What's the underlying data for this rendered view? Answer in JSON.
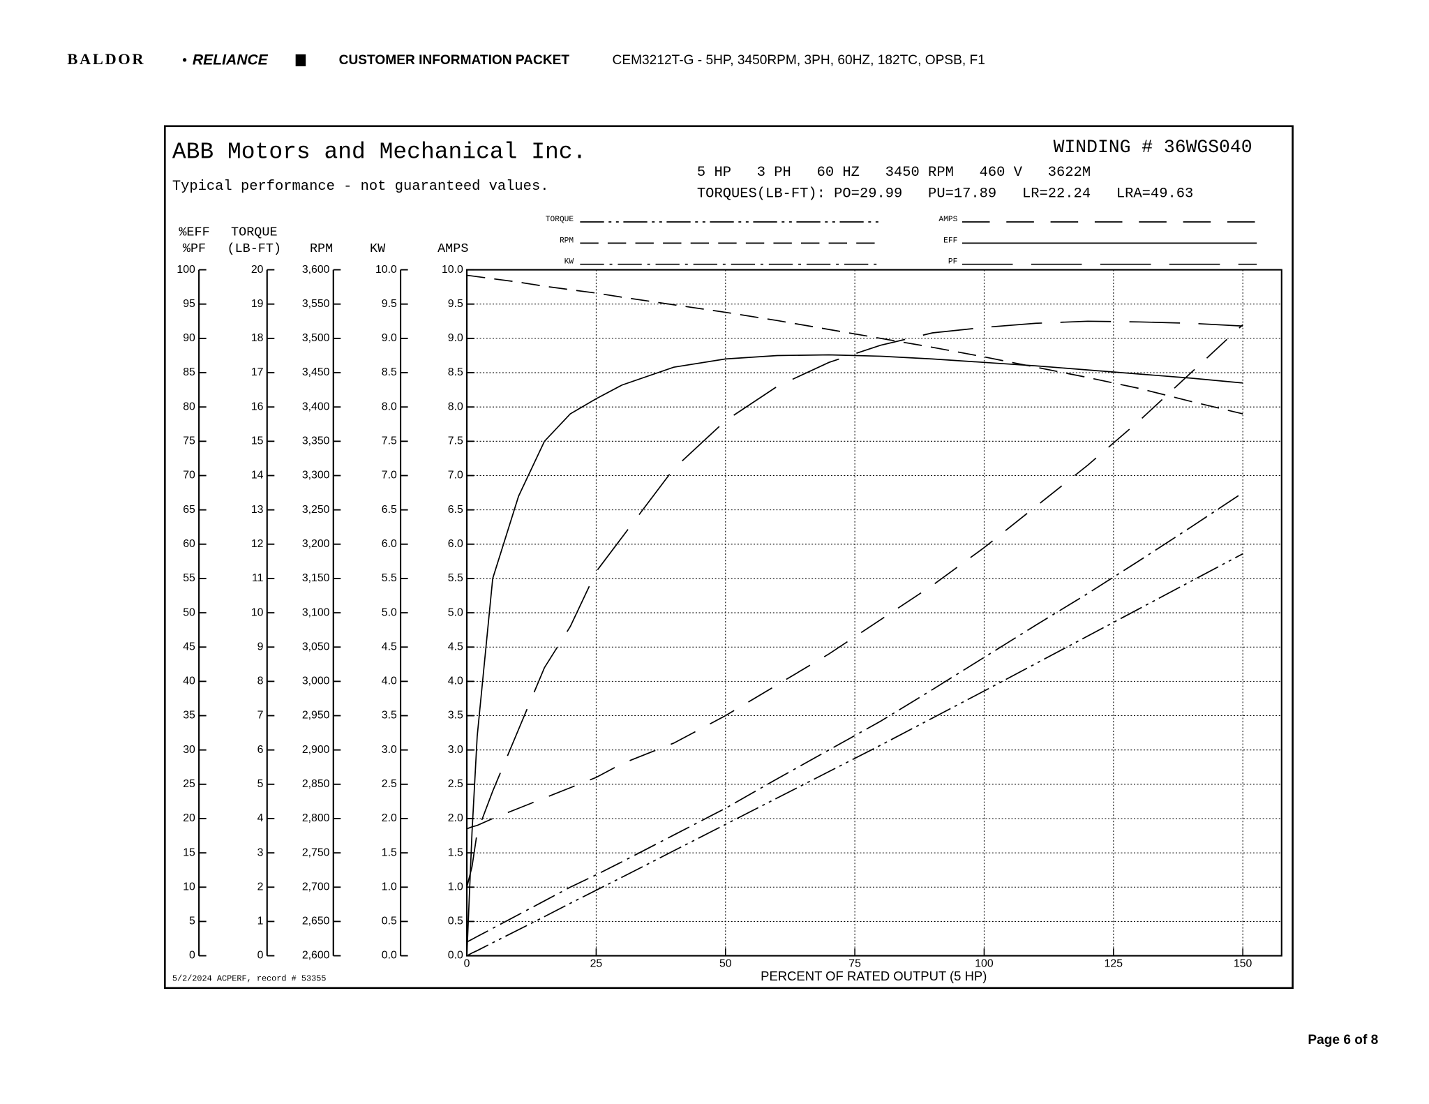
{
  "header": {
    "logo_left": "BALDOR",
    "separator": "•",
    "logo_right": "RELIANCE",
    "packet": "CUSTOMER INFORMATION PACKET",
    "model": "CEM3212T-G - 5HP, 3450RPM, 3PH, 60HZ, 182TC, OPSB, F1"
  },
  "footer": {
    "page": "Page 6 of 8"
  },
  "chart_data": {
    "type": "line",
    "company": "ABB Motors and Mechanical Inc.",
    "subtitle": "Typical performance - not guaranteed values.",
    "winding": "WINDING # 36WGS040",
    "ratings": "5 HP   3 PH   60 HZ   3450 RPM   460 V   3622M",
    "torques": "TORQUES(LB-FT): PO=29.99   PU=17.89   LR=22.24   LRA=49.63",
    "xlabel": "PERCENT OF RATED OUTPUT (5 HP)",
    "record": "5/2/2024 ACPERF, record # 53355",
    "grid": true,
    "x": [
      0,
      1,
      2,
      5,
      10,
      15,
      20,
      25,
      30,
      40,
      50,
      60,
      70,
      80,
      90,
      100,
      110,
      120,
      130,
      140,
      150
    ],
    "xlim": [
      0,
      157.5
    ],
    "xticks": [
      0,
      25,
      50,
      75,
      100,
      125,
      150
    ],
    "axes": [
      {
        "labels": [
          "%EFF",
          "%PF"
        ],
        "ylim": [
          0,
          100
        ],
        "yticks": [
          0,
          5,
          10,
          15,
          20,
          25,
          30,
          35,
          40,
          45,
          50,
          55,
          60,
          65,
          70,
          75,
          80,
          85,
          90,
          95,
          100
        ]
      },
      {
        "labels": [
          "TORQUE",
          "(LB-FT)"
        ],
        "ylim": [
          0,
          20
        ],
        "yticks": [
          0,
          1,
          2,
          3,
          4,
          5,
          6,
          7,
          8,
          9,
          10,
          11,
          12,
          13,
          14,
          15,
          16,
          17,
          18,
          19,
          20
        ]
      },
      {
        "labels": [
          "RPM"
        ],
        "ylim": [
          2600,
          3600
        ],
        "yticks": [
          {
            "value": 2600,
            "label": "2,600"
          },
          {
            "value": 2650,
            "label": "2,650"
          },
          {
            "value": 2700,
            "label": "2,700"
          },
          {
            "value": 2750,
            "label": "2,750"
          },
          {
            "value": 2800,
            "label": "2,800"
          },
          {
            "value": 2850,
            "label": "2,850"
          },
          {
            "value": 2900,
            "label": "2,900"
          },
          {
            "value": 2950,
            "label": "2,950"
          },
          {
            "value": 3000,
            "label": "3,000"
          },
          {
            "value": 3050,
            "label": "3,050"
          },
          {
            "value": 3100,
            "label": "3,100"
          },
          {
            "value": 3150,
            "label": "3,150"
          },
          {
            "value": 3200,
            "label": "3,200"
          },
          {
            "value": 3250,
            "label": "3,250"
          },
          {
            "value": 3300,
            "label": "3,300"
          },
          {
            "value": 3350,
            "label": "3,350"
          },
          {
            "value": 3400,
            "label": "3,400"
          },
          {
            "value": 3450,
            "label": "3,450"
          },
          {
            "value": 3500,
            "label": "3,500"
          },
          {
            "value": 3550,
            "label": "3,550"
          },
          {
            "value": 3600,
            "label": "3,600"
          }
        ]
      },
      {
        "labels": [
          "KW"
        ],
        "ylim": [
          0,
          10
        ],
        "yticks": [
          {
            "value": 0,
            "label": "0.0"
          },
          0.5,
          {
            "value": 1,
            "label": "1.0"
          },
          1.5,
          {
            "value": 2,
            "label": "2.0"
          },
          2.5,
          {
            "value": 3,
            "label": "3.0"
          },
          3.5,
          {
            "value": 4,
            "label": "4.0"
          },
          4.5,
          {
            "value": 5,
            "label": "5.0"
          },
          5.5,
          {
            "value": 6,
            "label": "6.0"
          },
          6.5,
          {
            "value": 7,
            "label": "7.0"
          },
          7.5,
          {
            "value": 8,
            "label": "8.0"
          },
          8.5,
          {
            "value": 9,
            "label": "9.0"
          },
          9.5,
          {
            "value": 10,
            "label": "10.0"
          }
        ]
      },
      {
        "labels": [
          "AMPS"
        ],
        "ylim": [
          0,
          10
        ],
        "yticks": [
          {
            "value": 0,
            "label": "0.0"
          },
          0.5,
          {
            "value": 1,
            "label": "1.0"
          },
          1.5,
          {
            "value": 2,
            "label": "2.0"
          },
          2.5,
          {
            "value": 3,
            "label": "3.0"
          },
          3.5,
          {
            "value": 4,
            "label": "4.0"
          },
          4.5,
          {
            "value": 5,
            "label": "5.0"
          },
          5.5,
          {
            "value": 6,
            "label": "6.0"
          },
          6.5,
          {
            "value": 7,
            "label": "7.0"
          },
          7.5,
          {
            "value": 8,
            "label": "8.0"
          },
          8.5,
          {
            "value": 9,
            "label": "9.0"
          },
          9.5,
          {
            "value": 10,
            "label": "10.0"
          }
        ]
      }
    ],
    "series": [
      {
        "name": "TORQUE",
        "axis": 1,
        "color": "#000000",
        "dash": "dash-dot-dot",
        "values": [
          0,
          0.08,
          0.15,
          0.38,
          0.76,
          1.14,
          1.53,
          1.91,
          2.29,
          3.06,
          3.83,
          4.6,
          5.37,
          6.14,
          6.93,
          7.72,
          8.52,
          9.32,
          10.12,
          10.92,
          11.72
        ]
      },
      {
        "name": "RPM",
        "axis": 2,
        "color": "#000000",
        "dash": "dash",
        "values": [
          3592,
          3591,
          3590,
          3587,
          3582,
          3576,
          3571,
          3566,
          3560,
          3549,
          3538,
          3526,
          3513,
          3500,
          3487,
          3473,
          3458,
          3443,
          3427,
          3408,
          3390
        ]
      },
      {
        "name": "KW",
        "axis": 3,
        "color": "#000000",
        "dash": "dash-dot",
        "values": [
          0.2,
          0.24,
          0.28,
          0.4,
          0.6,
          0.8,
          1.0,
          1.18,
          1.37,
          1.76,
          2.15,
          2.58,
          3.0,
          3.42,
          3.88,
          4.35,
          4.82,
          5.28,
          5.76,
          6.25,
          6.75
        ]
      },
      {
        "name": "AMPS",
        "axis": 4,
        "color": "#000000",
        "dash": "long-dash",
        "values": [
          1.85,
          1.88,
          1.9,
          2.0,
          2.15,
          2.3,
          2.45,
          2.6,
          2.8,
          3.1,
          3.5,
          3.95,
          4.4,
          4.9,
          5.4,
          5.95,
          6.55,
          7.15,
          7.8,
          8.5,
          9.2
        ]
      },
      {
        "name": "EFF",
        "axis": 0,
        "color": "#000000",
        "dash": "solid",
        "values": [
          0,
          18,
          32,
          55,
          67,
          75,
          79,
          81.2,
          83.2,
          85.8,
          87,
          87.5,
          87.6,
          87.4,
          87,
          86.5,
          86,
          85.4,
          84.8,
          84.2,
          83.5
        ]
      },
      {
        "name": "PF",
        "axis": 0,
        "color": "#000000",
        "dash": "extra-long-dash",
        "values": [
          10,
          13,
          18,
          24,
          33,
          42,
          48,
          56,
          61,
          71,
          78,
          83,
          86.5,
          89,
          90.8,
          91.6,
          92.2,
          92.5,
          92.4,
          92.2,
          91.8
        ]
      }
    ]
  }
}
